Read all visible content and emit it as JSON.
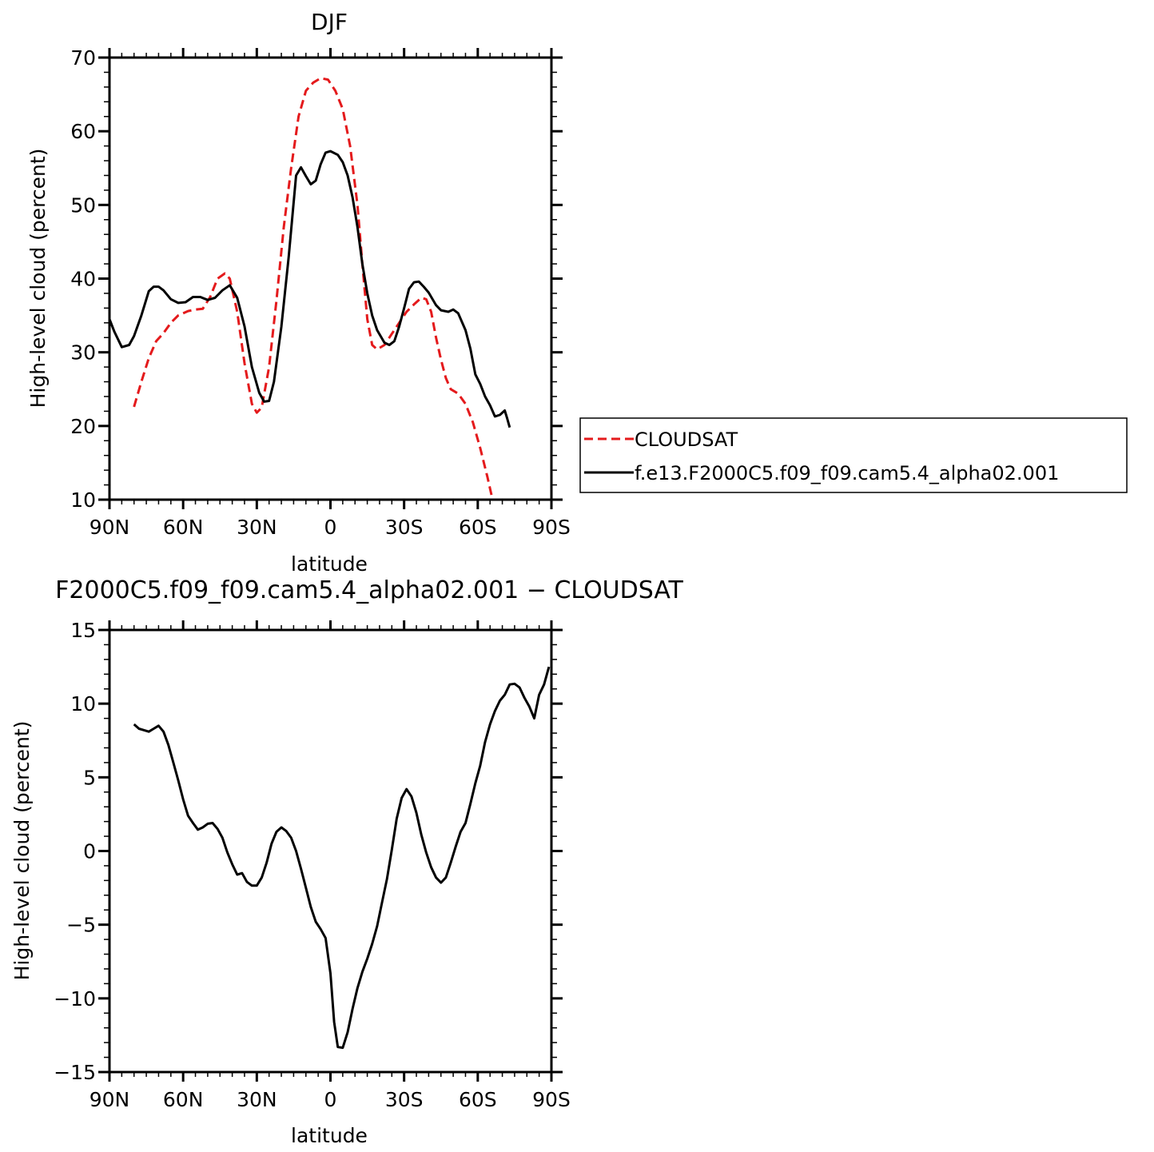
{
  "chart_data": [
    {
      "type": "line",
      "title": "DJF",
      "xlabel": "latitude",
      "ylabel": "High-level cloud (percent)",
      "xlim": [
        -90,
        90
      ],
      "ylim": [
        10,
        70
      ],
      "xticks": [
        -90,
        -60,
        -30,
        0,
        30,
        60,
        90
      ],
      "xtick_labels": [
        "90N",
        "60N",
        "30N",
        "0",
        "30S",
        "60S",
        "90S"
      ],
      "yticks": [
        10,
        20,
        30,
        40,
        50,
        60,
        70
      ],
      "ytick_labels": [
        "10",
        "20",
        "30",
        "40",
        "50",
        "60",
        "70"
      ],
      "legend_position": "right",
      "series": [
        {
          "name": "CLOUDSAT",
          "color": "#e41a1c",
          "style": "dashed",
          "points": [
            [
              -80,
              22.6
            ],
            [
              -77,
              26
            ],
            [
              -74,
              29.2
            ],
            [
              -71,
              31.5
            ],
            [
              -68,
              32.6
            ],
            [
              -65,
              34
            ],
            [
              -62,
              35
            ],
            [
              -58,
              35.6
            ],
            [
              -55,
              35.8
            ],
            [
              -52,
              35.9
            ],
            [
              -49,
              37.5
            ],
            [
              -46,
              40
            ],
            [
              -43,
              40.7
            ],
            [
              -41,
              40
            ],
            [
              -38,
              35.5
            ],
            [
              -35,
              28.5
            ],
            [
              -32,
              23
            ],
            [
              -30,
              21.8
            ],
            [
              -28,
              22.5
            ],
            [
              -25,
              28
            ],
            [
              -22,
              37
            ],
            [
              -19,
              47
            ],
            [
              -16,
              55
            ],
            [
              -13,
              62
            ],
            [
              -10,
              65.5
            ],
            [
              -7,
              66.6
            ],
            [
              -4,
              67.2
            ],
            [
              -1,
              67
            ],
            [
              2,
              65.5
            ],
            [
              5,
              63
            ],
            [
              8,
              58
            ],
            [
              11,
              50
            ],
            [
              13,
              42
            ],
            [
              15,
              34.5
            ],
            [
              17,
              31
            ],
            [
              19,
              30.4
            ],
            [
              22,
              31
            ],
            [
              25,
              32.5
            ],
            [
              28,
              34
            ],
            [
              31,
              35.5
            ],
            [
              34,
              36.5
            ],
            [
              37,
              37.4
            ],
            [
              39,
              37.2
            ],
            [
              41,
              35.5
            ],
            [
              43,
              32
            ],
            [
              45,
              29
            ],
            [
              47,
              26.5
            ],
            [
              49,
              25
            ],
            [
              52,
              24.4
            ],
            [
              55,
              23
            ],
            [
              58,
              20.5
            ],
            [
              61,
              17
            ],
            [
              64,
              13
            ],
            [
              66,
              10
            ]
          ]
        },
        {
          "name": "f.e13.F2000C5.f09_f09.cam5.4_alpha02.001",
          "color": "#000000",
          "style": "solid",
          "points": [
            [
              -90,
              34.5
            ],
            [
              -88,
              32.8
            ],
            [
              -85,
              30.7
            ],
            [
              -82,
              31
            ],
            [
              -80,
              32.2
            ],
            [
              -77,
              35
            ],
            [
              -74,
              38.3
            ],
            [
              -72,
              38.9
            ],
            [
              -70,
              38.9
            ],
            [
              -68,
              38.4
            ],
            [
              -65,
              37.2
            ],
            [
              -62,
              36.7
            ],
            [
              -59,
              36.8
            ],
            [
              -56,
              37.5
            ],
            [
              -53,
              37.5
            ],
            [
              -50,
              37.1
            ],
            [
              -47,
              37.4
            ],
            [
              -44,
              38.4
            ],
            [
              -41,
              39.1
            ],
            [
              -38,
              37.4
            ],
            [
              -35,
              33.5
            ],
            [
              -32,
              28
            ],
            [
              -29,
              24.5
            ],
            [
              -27,
              23.3
            ],
            [
              -25,
              23.4
            ],
            [
              -23,
              26
            ],
            [
              -20,
              33.5
            ],
            [
              -17,
              43
            ],
            [
              -14,
              54
            ],
            [
              -12,
              55.1
            ],
            [
              -10,
              53.9
            ],
            [
              -8,
              52.8
            ],
            [
              -6,
              53.3
            ],
            [
              -4,
              55.5
            ],
            [
              -2,
              57.1
            ],
            [
              0,
              57.3
            ],
            [
              3,
              56.8
            ],
            [
              5,
              55.8
            ],
            [
              7,
              54
            ],
            [
              9,
              51
            ],
            [
              11,
              47
            ],
            [
              13,
              42
            ],
            [
              15,
              38
            ],
            [
              17,
              35
            ],
            [
              19,
              33
            ],
            [
              22,
              31.3
            ],
            [
              24,
              31
            ],
            [
              26,
              31.5
            ],
            [
              28,
              33.5
            ],
            [
              30,
              36
            ],
            [
              32,
              38.6
            ],
            [
              34,
              39.5
            ],
            [
              36,
              39.6
            ],
            [
              38,
              38.9
            ],
            [
              40,
              38.1
            ],
            [
              43,
              36.4
            ],
            [
              45,
              35.7
            ],
            [
              48,
              35.5
            ],
            [
              50,
              35.8
            ],
            [
              52,
              35.3
            ],
            [
              55,
              33
            ],
            [
              57,
              30.5
            ],
            [
              59,
              27
            ],
            [
              61,
              25.7
            ],
            [
              63,
              24
            ],
            [
              65,
              22.8
            ],
            [
              67,
              21.3
            ],
            [
              69,
              21.5
            ],
            [
              71,
              22.1
            ],
            [
              72,
              21
            ],
            [
              73,
              19.8
            ]
          ]
        }
      ]
    },
    {
      "type": "line",
      "title": "F2000C5.f09_f09.cam5.4_alpha02.001 − CLOUDSAT",
      "xlabel": "latitude",
      "ylabel": "High-level cloud (percent)",
      "xlim": [
        -90,
        90
      ],
      "ylim": [
        -15,
        15
      ],
      "xticks": [
        -90,
        -60,
        -30,
        0,
        30,
        60,
        90
      ],
      "xtick_labels": [
        "90N",
        "60N",
        "30N",
        "0",
        "30S",
        "60S",
        "90S"
      ],
      "yticks": [
        -15,
        -10,
        -5,
        0,
        5,
        10,
        15
      ],
      "ytick_labels": [
        "−15",
        "−10",
        "−5",
        "0",
        "5",
        "10",
        "15"
      ],
      "series": [
        {
          "color": "#000000",
          "style": "solid",
          "points": [
            [
              -80,
              8.6
            ],
            [
              -78,
              8.3
            ],
            [
              -76,
              8.2
            ],
            [
              -74,
              8.1
            ],
            [
              -72,
              8.3
            ],
            [
              -70,
              8.5
            ],
            [
              -68,
              8.1
            ],
            [
              -66,
              7.2
            ],
            [
              -64,
              6
            ],
            [
              -62,
              4.8
            ],
            [
              -60,
              3.5
            ],
            [
              -58,
              2.4
            ],
            [
              -56,
              1.9
            ],
            [
              -54,
              1.45
            ],
            [
              -52,
              1.6
            ],
            [
              -50,
              1.85
            ],
            [
              -48,
              1.9
            ],
            [
              -46,
              1.5
            ],
            [
              -44,
              0.9
            ],
            [
              -42,
              -0.1
            ],
            [
              -40,
              -0.9
            ],
            [
              -38,
              -1.6
            ],
            [
              -36,
              -1.5
            ],
            [
              -34,
              -2.1
            ],
            [
              -32,
              -2.35
            ],
            [
              -30,
              -2.35
            ],
            [
              -28,
              -1.8
            ],
            [
              -26,
              -0.8
            ],
            [
              -24,
              0.5
            ],
            [
              -22,
              1.3
            ],
            [
              -20,
              1.6
            ],
            [
              -18,
              1.35
            ],
            [
              -16,
              0.9
            ],
            [
              -14,
              0
            ],
            [
              -12,
              -1.2
            ],
            [
              -10,
              -2.5
            ],
            [
              -8,
              -3.8
            ],
            [
              -6,
              -4.8
            ],
            [
              -4,
              -5.3
            ],
            [
              -2,
              -5.9
            ],
            [
              0,
              -8.3
            ],
            [
              1.5,
              -11.6
            ],
            [
              3,
              -13.3
            ],
            [
              5,
              -13.35
            ],
            [
              7,
              -12.3
            ],
            [
              9,
              -10.7
            ],
            [
              11,
              -9.3
            ],
            [
              13,
              -8.2
            ],
            [
              15,
              -7.3
            ],
            [
              17,
              -6.3
            ],
            [
              19,
              -5.1
            ],
            [
              21,
              -3.5
            ],
            [
              23,
              -1.9
            ],
            [
              25,
              0.1
            ],
            [
              27,
              2.2
            ],
            [
              29,
              3.6
            ],
            [
              31,
              4.2
            ],
            [
              33,
              3.7
            ],
            [
              35,
              2.6
            ],
            [
              37,
              1.1
            ],
            [
              39,
              -0.1
            ],
            [
              41,
              -1.1
            ],
            [
              43,
              -1.8
            ],
            [
              45,
              -2.15
            ],
            [
              47,
              -1.8
            ],
            [
              49,
              -0.8
            ],
            [
              51,
              0.3
            ],
            [
              53,
              1.3
            ],
            [
              55,
              1.9
            ],
            [
              57,
              3.2
            ],
            [
              59,
              4.6
            ],
            [
              61,
              5.8
            ],
            [
              63,
              7.4
            ],
            [
              65,
              8.6
            ],
            [
              67,
              9.5
            ],
            [
              69,
              10.2
            ],
            [
              71,
              10.6
            ],
            [
              73,
              11.3
            ],
            [
              75,
              11.35
            ],
            [
              77,
              11.1
            ],
            [
              79,
              10.4
            ],
            [
              81,
              9.8
            ],
            [
              83,
              9.0
            ],
            [
              85,
              10.6
            ],
            [
              87,
              11.3
            ],
            [
              89,
              12.5
            ]
          ]
        }
      ]
    }
  ]
}
